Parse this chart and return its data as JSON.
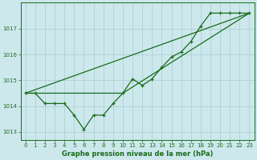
{
  "title": "Graphe pression niveau de la mer (hPa)",
  "bg_color": "#cce8ec",
  "grid_color": "#aaccd0",
  "line_color": "#1a6b1a",
  "marker_color": "#1a6b1a",
  "xlim": [
    -0.5,
    23.5
  ],
  "ylim": [
    1012.7,
    1018.0
  ],
  "yticks": [
    1013,
    1014,
    1015,
    1016,
    1017
  ],
  "xticks": [
    0,
    1,
    2,
    3,
    4,
    5,
    6,
    7,
    8,
    9,
    10,
    11,
    12,
    13,
    14,
    15,
    16,
    17,
    18,
    19,
    20,
    21,
    22,
    23
  ],
  "series1_x": [
    0,
    1,
    2,
    3,
    4,
    5,
    6,
    7,
    8,
    9,
    10,
    11,
    12,
    13,
    14,
    15,
    16,
    17,
    18,
    19,
    20,
    21,
    22,
    23
  ],
  "series1_y": [
    1014.5,
    1014.5,
    1014.1,
    1014.1,
    1014.1,
    1013.65,
    1013.1,
    1013.65,
    1013.65,
    1014.1,
    1014.5,
    1015.05,
    1014.8,
    1015.05,
    1015.5,
    1015.9,
    1016.1,
    1016.5,
    1017.1,
    1017.6,
    1017.6,
    1017.6,
    1017.6,
    1017.6
  ],
  "series2_x": [
    0,
    23
  ],
  "series2_y": [
    1014.5,
    1017.6
  ],
  "series3_x": [
    0,
    10,
    23
  ],
  "series3_y": [
    1014.5,
    1014.5,
    1017.6
  ],
  "ylabel_fontsize": 5,
  "xlabel_fontsize": 6,
  "tick_labelsize": 5
}
